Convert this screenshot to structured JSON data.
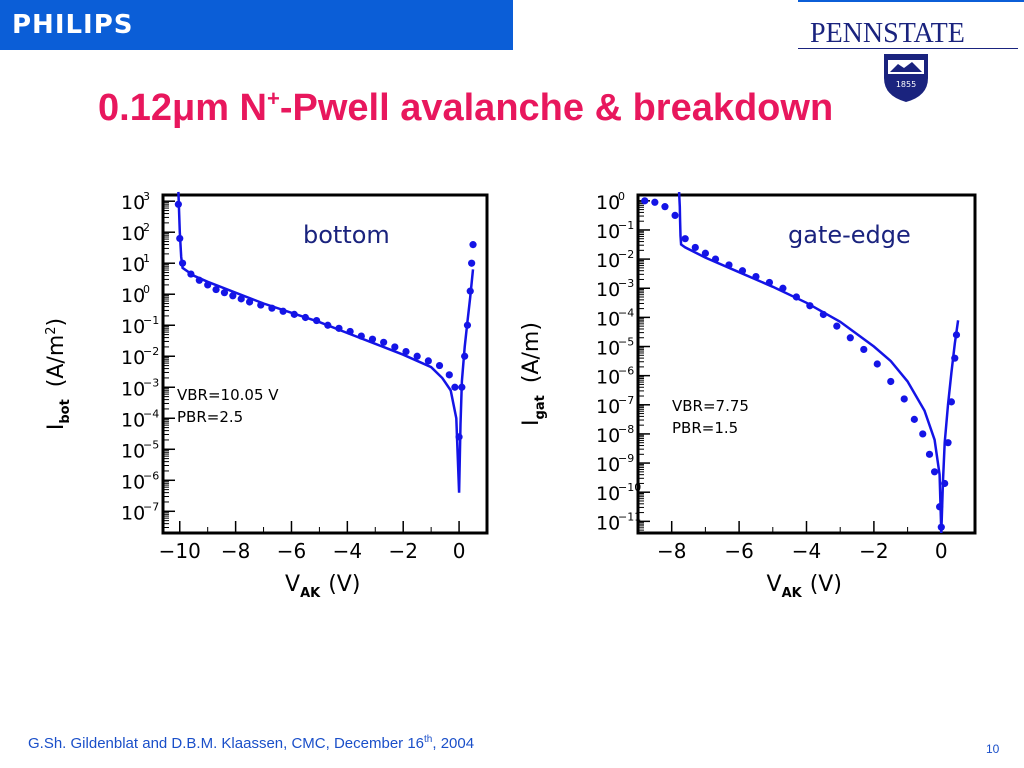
{
  "header": {
    "philips_logo": "PHILIPS",
    "pennstate_logo": "PENNSTATE",
    "pennstate_year": "1855"
  },
  "slide": {
    "title_a": "0.12μm N",
    "title_sup": "+",
    "title_b": "-Pwell avalanche & breakdown",
    "footer_a": "G.Sh. Gildenblat and D.B.M. Klaassen, CMC, December 16",
    "footer_sup": "th",
    "footer_b": ", 2004",
    "page_number": "10"
  },
  "colors": {
    "accent_title": "#e8175d",
    "brand_blue": "#0b5ed7",
    "data": "#1414e6",
    "pennstate_navy": "#1a237e"
  },
  "chart_data": [
    {
      "type": "scatter",
      "annotation": "bottom",
      "param_lines": [
        "VBR=10.05 V",
        "PBR=2.5"
      ],
      "xlabel_main": "V",
      "xlabel_sub": "AK",
      "xlabel_unit": "(V)",
      "ylabel_main": "I",
      "ylabel_sub": "bot",
      "ylabel_unit": "(A/m",
      "ylabel_sup": "2",
      "ylabel_close": ")",
      "xlim": [
        -10.6,
        1.0
      ],
      "ylim_exp": [
        -7.7,
        3.2
      ],
      "x_ticks": [
        -10,
        -8,
        -6,
        -4,
        -2,
        0
      ],
      "y_tick_exps": [
        3,
        2,
        1,
        0,
        -1,
        -2,
        -3,
        -4,
        -5,
        -6,
        -7
      ],
      "series": [
        {
          "style": "points",
          "x": [
            -10.05,
            -10.0,
            -9.9,
            -9.6,
            -9.3,
            -9.0,
            -8.7,
            -8.4,
            -8.1,
            -7.8,
            -7.5,
            -7.1,
            -6.7,
            -6.3,
            -5.9,
            -5.5,
            -5.1,
            -4.7,
            -4.3,
            -3.9,
            -3.5,
            -3.1,
            -2.7,
            -2.3,
            -1.9,
            -1.5,
            -1.1,
            -0.7,
            -0.35,
            -0.15,
            0.0,
            0.1,
            0.2,
            0.3,
            0.4,
            0.45,
            0.5
          ],
          "y": [
            2.9,
            1.8,
            1.0,
            0.65,
            0.45,
            0.3,
            0.15,
            0.05,
            -0.05,
            -0.15,
            -0.25,
            -0.35,
            -0.45,
            -0.55,
            -0.65,
            -0.75,
            -0.85,
            -1.0,
            -1.1,
            -1.2,
            -1.35,
            -1.45,
            -1.55,
            -1.7,
            -1.85,
            -2.0,
            -2.15,
            -2.3,
            -2.6,
            -3.0,
            -4.6,
            -3.0,
            -2.0,
            -1.0,
            0.1,
            1.0,
            1.6
          ]
        },
        {
          "style": "line",
          "x": [
            -10.05,
            -10.0,
            -9.95,
            -9.9,
            -9.5,
            -9.0,
            -8.0,
            -7.0,
            -6.0,
            -5.0,
            -4.0,
            -3.0,
            -2.0,
            -1.0,
            -0.6,
            -0.3,
            -0.1,
            0.0,
            0.05,
            0.1,
            0.2,
            0.3,
            0.4,
            0.5
          ],
          "y": [
            3.3,
            2.0,
            1.2,
            0.85,
            0.6,
            0.4,
            0.05,
            -0.3,
            -0.6,
            -0.9,
            -1.25,
            -1.6,
            -1.95,
            -2.35,
            -2.7,
            -3.1,
            -4.0,
            -6.4,
            -4.2,
            -2.8,
            -1.7,
            -0.9,
            -0.1,
            0.8
          ]
        }
      ]
    },
    {
      "type": "scatter",
      "annotation": "gate-edge",
      "param_lines": [
        "VBR=7.75",
        "PBR=1.5"
      ],
      "xlabel_main": "V",
      "xlabel_sub": "AK",
      "xlabel_unit": "(V)",
      "ylabel_main": "I",
      "ylabel_sub": "gat",
      "ylabel_unit": "(A/m)",
      "xlim": [
        -9.0,
        1.0
      ],
      "ylim_exp": [
        -11.4,
        0.2
      ],
      "x_ticks": [
        -8,
        -6,
        -4,
        -2,
        0
      ],
      "y_tick_exps": [
        0,
        -1,
        -2,
        -3,
        -4,
        -5,
        -6,
        -7,
        -8,
        -9,
        -10,
        -11
      ],
      "series": [
        {
          "style": "points",
          "x": [
            -8.8,
            -8.5,
            -8.2,
            -7.9,
            -7.6,
            -7.3,
            -7.0,
            -6.7,
            -6.3,
            -5.9,
            -5.5,
            -5.1,
            -4.7,
            -4.3,
            -3.9,
            -3.5,
            -3.1,
            -2.7,
            -2.3,
            -1.9,
            -1.5,
            -1.1,
            -0.8,
            -0.55,
            -0.35,
            -0.2,
            -0.05,
            0.0,
            0.1,
            0.2,
            0.3,
            0.4,
            0.45
          ],
          "y": [
            0.0,
            -0.05,
            -0.2,
            -0.5,
            -1.3,
            -1.6,
            -1.8,
            -2.0,
            -2.2,
            -2.4,
            -2.6,
            -2.8,
            -3.0,
            -3.3,
            -3.6,
            -3.9,
            -4.3,
            -4.7,
            -5.1,
            -5.6,
            -6.2,
            -6.8,
            -7.5,
            -8.0,
            -8.7,
            -9.3,
            -10.5,
            -11.2,
            -9.7,
            -8.3,
            -6.9,
            -5.4,
            -4.6
          ]
        },
        {
          "style": "line",
          "x": [
            -7.78,
            -7.76,
            -7.75,
            -7.74,
            -7.72,
            -7.6,
            -7.0,
            -6.0,
            -5.0,
            -4.0,
            -3.0,
            -2.0,
            -1.5,
            -1.0,
            -0.5,
            -0.2,
            -0.05,
            0.0,
            0.05,
            0.1,
            0.2,
            0.3,
            0.4,
            0.5
          ],
          "y": [
            0.3,
            -0.2,
            -0.7,
            -1.2,
            -1.5,
            -1.6,
            -1.95,
            -2.45,
            -2.95,
            -3.5,
            -4.15,
            -5.0,
            -5.5,
            -6.2,
            -7.2,
            -8.2,
            -9.4,
            -11.4,
            -9.6,
            -8.3,
            -7.0,
            -5.9,
            -4.9,
            -4.1
          ]
        }
      ]
    }
  ]
}
